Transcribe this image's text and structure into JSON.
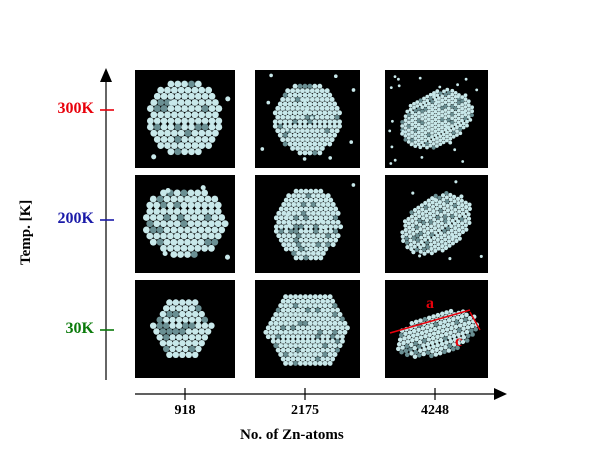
{
  "y_axis": {
    "title": "Temp. [K]",
    "ticks": [
      {
        "label": "300K",
        "color": "#e8000b"
      },
      {
        "label": "200K",
        "color": "#1a1aa8"
      },
      {
        "label": "30K",
        "color": "#0a7a0a"
      }
    ]
  },
  "x_axis": {
    "title": "No. of Zn-atoms",
    "ticks": [
      "918",
      "2175",
      "4248"
    ]
  },
  "annotations": {
    "a": "a",
    "c": "c",
    "color": "#e8000b"
  },
  "colors": {
    "panel_bg": "#000000",
    "atom": "#c8e8ea",
    "atom_shade": "#6a8f93"
  }
}
